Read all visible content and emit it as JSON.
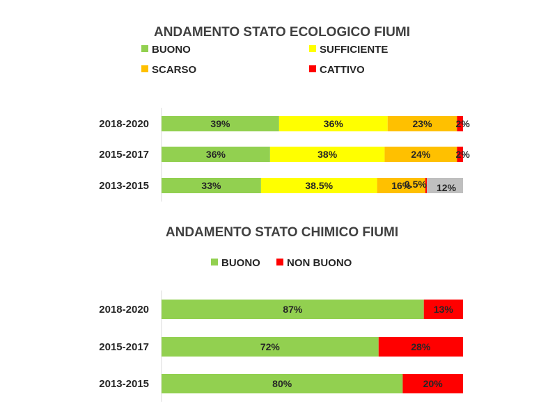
{
  "chart_data": [
    {
      "type": "bar",
      "orientation": "horizontal",
      "stacked": "100%",
      "title": "ANDAMENTO STATO ECOLOGICO FIUMI",
      "categories": [
        "2018-2020",
        "2015-2017",
        "2013-2015"
      ],
      "legend_placement": "top",
      "series": [
        {
          "name": "BUONO",
          "color": "#92d050",
          "values": [
            39,
            36,
            33
          ],
          "labels": [
            "39%",
            "36%",
            "33%"
          ]
        },
        {
          "name": "SUFFICIENTE",
          "color": "#ffff00",
          "values": [
            36,
            38,
            38.5
          ],
          "labels": [
            "36%",
            "38%",
            "38.5%"
          ]
        },
        {
          "name": "SCARSO",
          "color": "#ffc000",
          "values": [
            23,
            24,
            16
          ],
          "labels": [
            "23%",
            "24%",
            "16%"
          ]
        },
        {
          "name": "CATTIVO",
          "color": "#ff0000",
          "values": [
            2,
            2,
            0.5
          ],
          "labels": [
            "2%",
            "2%",
            "0.5%"
          ]
        },
        {
          "name": "",
          "color": "#bfbfbf",
          "values": [
            0,
            0,
            12
          ],
          "labels": [
            "",
            "",
            "12%"
          ]
        }
      ],
      "xlim": [
        0,
        100
      ],
      "grid": false
    },
    {
      "type": "bar",
      "orientation": "horizontal",
      "stacked": "100%",
      "title": "ANDAMENTO STATO CHIMICO FIUMI",
      "categories": [
        "2018-2020",
        "2015-2017",
        "2013-2015"
      ],
      "legend_placement": "top",
      "series": [
        {
          "name": "BUONO",
          "color": "#92d050",
          "values": [
            87,
            72,
            80
          ],
          "labels": [
            "87%",
            "72%",
            "80%"
          ]
        },
        {
          "name": "NON BUONO",
          "color": "#ff0000",
          "values": [
            13,
            28,
            20
          ],
          "labels": [
            "13%",
            "28%",
            "20%"
          ]
        }
      ],
      "xlim": [
        0,
        100
      ],
      "grid": false
    }
  ]
}
